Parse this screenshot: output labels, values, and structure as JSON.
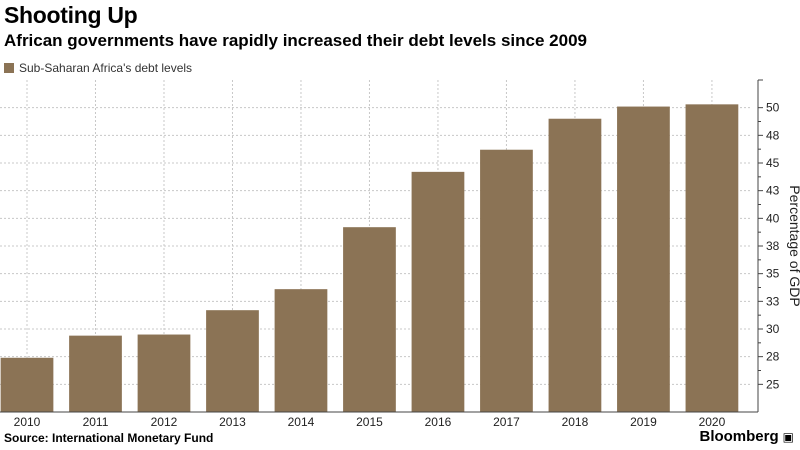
{
  "chart_data": {
    "type": "bar",
    "title": "Shooting Up",
    "subtitle": "African governments have rapidly increased their debt levels since 2009",
    "legend": [
      {
        "label": "Sub-Saharan Africa's debt levels",
        "color": "#8B7355"
      }
    ],
    "categories": [
      "2010",
      "2011",
      "2012",
      "2013",
      "2014",
      "2015",
      "2016",
      "2017",
      "2018",
      "2019",
      "2020"
    ],
    "values": [
      27.4,
      29.4,
      29.5,
      31.7,
      33.6,
      39.2,
      44.2,
      46.2,
      49.0,
      50.1,
      50.3
    ],
    "ylabel": "Percentage of GDP",
    "xlabel": "",
    "ylim": [
      22.5,
      52.5
    ],
    "yticks": [
      25,
      27.5,
      30,
      32.5,
      35,
      37.5,
      40,
      42.5,
      45,
      47.5,
      50
    ],
    "yticklabels": [
      "25",
      "28",
      "30",
      "33",
      "35",
      "38",
      "40",
      "43",
      "45",
      "48",
      "50"
    ],
    "grid": true,
    "axis_side": "right"
  },
  "footer": {
    "source": "Source: International Monetary Fund",
    "brand": "Bloomberg"
  }
}
